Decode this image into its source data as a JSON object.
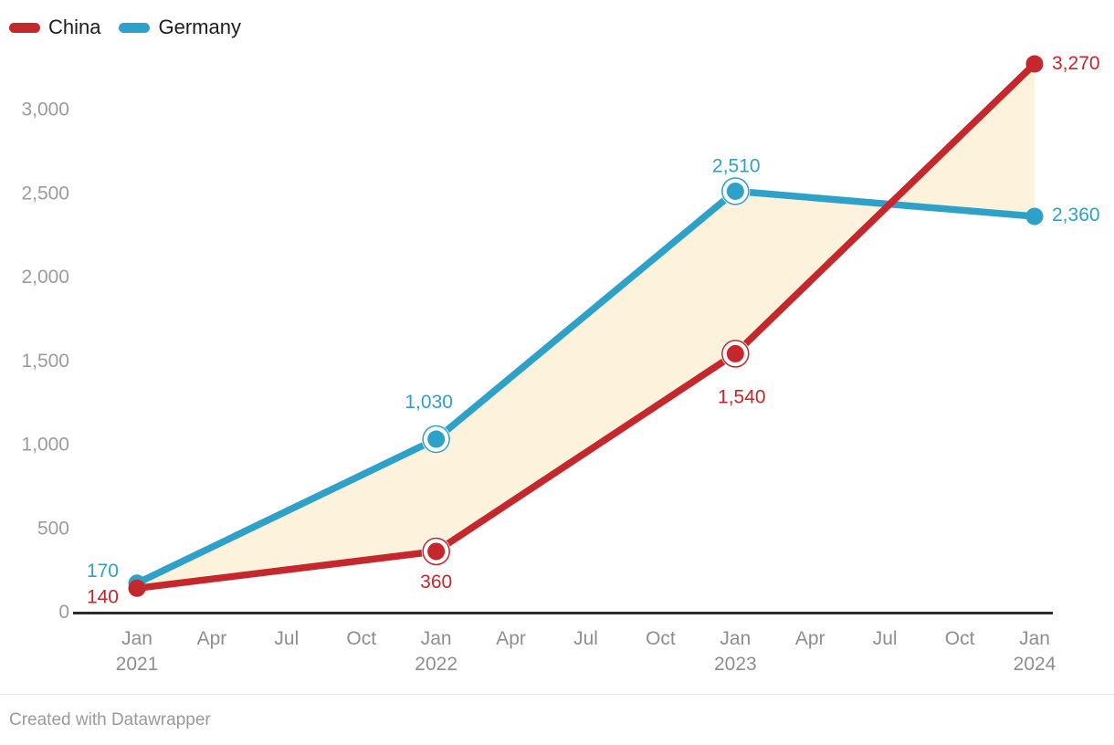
{
  "legend": {
    "items": [
      {
        "id": "china",
        "label": "China",
        "color": "#c4272c"
      },
      {
        "id": "germany",
        "label": "Germany",
        "color": "#2ea1c8"
      }
    ]
  },
  "footer": {
    "credit": "Created with Datawrapper"
  },
  "chart_data": {
    "type": "line",
    "x": [
      "Jan 2021",
      "Jan 2022",
      "Jan 2023",
      "Jan 2024"
    ],
    "series": [
      {
        "name": "China",
        "color": "#c4272c",
        "values": [
          140,
          360,
          1540,
          3270
        ],
        "labels": [
          "140",
          "360",
          "1,540",
          "3,270"
        ]
      },
      {
        "name": "Germany",
        "color": "#2ea1c8",
        "values": [
          170,
          1030,
          2510,
          2360
        ],
        "labels": [
          "170",
          "1,030",
          "2,510",
          "2,360"
        ]
      }
    ],
    "area_between_fill": "#fdf3dc",
    "y_ticks": [
      0,
      500,
      1000,
      1500,
      2000,
      2500,
      3000
    ],
    "y_tick_labels": [
      "0",
      "500",
      "1,000",
      "1,500",
      "2,000",
      "2,500",
      "3,000"
    ],
    "x_tick_labels": [
      [
        "Jan",
        "2021"
      ],
      [
        "Apr"
      ],
      [
        "Jul"
      ],
      [
        "Oct"
      ],
      [
        "Jan",
        "2022"
      ],
      [
        "Apr"
      ],
      [
        "Jul"
      ],
      [
        "Oct"
      ],
      [
        "Jan",
        "2023"
      ],
      [
        "Apr"
      ],
      [
        "Jul"
      ],
      [
        "Oct"
      ],
      [
        "Jan",
        "2024"
      ]
    ],
    "ylim": [
      0,
      3270
    ],
    "grid": false,
    "legend_position": "top-left",
    "axis_color": "#2b2b2b"
  }
}
